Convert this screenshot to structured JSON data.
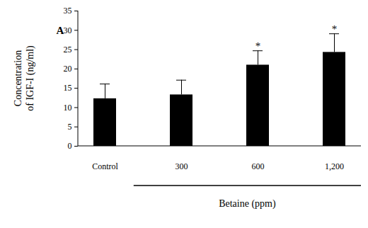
{
  "chart_data": {
    "type": "bar",
    "panel_label": "A",
    "ylabel": [
      "Concentration",
      "of IGF-I (ng/ml)"
    ],
    "xlabel": "Betaine (ppm)",
    "categories": [
      "Control",
      "300",
      "600",
      "1,200"
    ],
    "values": [
      12.3,
      13.3,
      21.0,
      24.3
    ],
    "errors": [
      3.8,
      3.8,
      3.7,
      4.8
    ],
    "annotations": [
      {
        "category": "600",
        "text": "*"
      },
      {
        "category": "1,200",
        "text": "*"
      }
    ],
    "color": "#000000",
    "ylim": [
      0,
      35
    ],
    "yticks": [
      0,
      5,
      10,
      15,
      20,
      25,
      30,
      35
    ],
    "grid": false
  }
}
